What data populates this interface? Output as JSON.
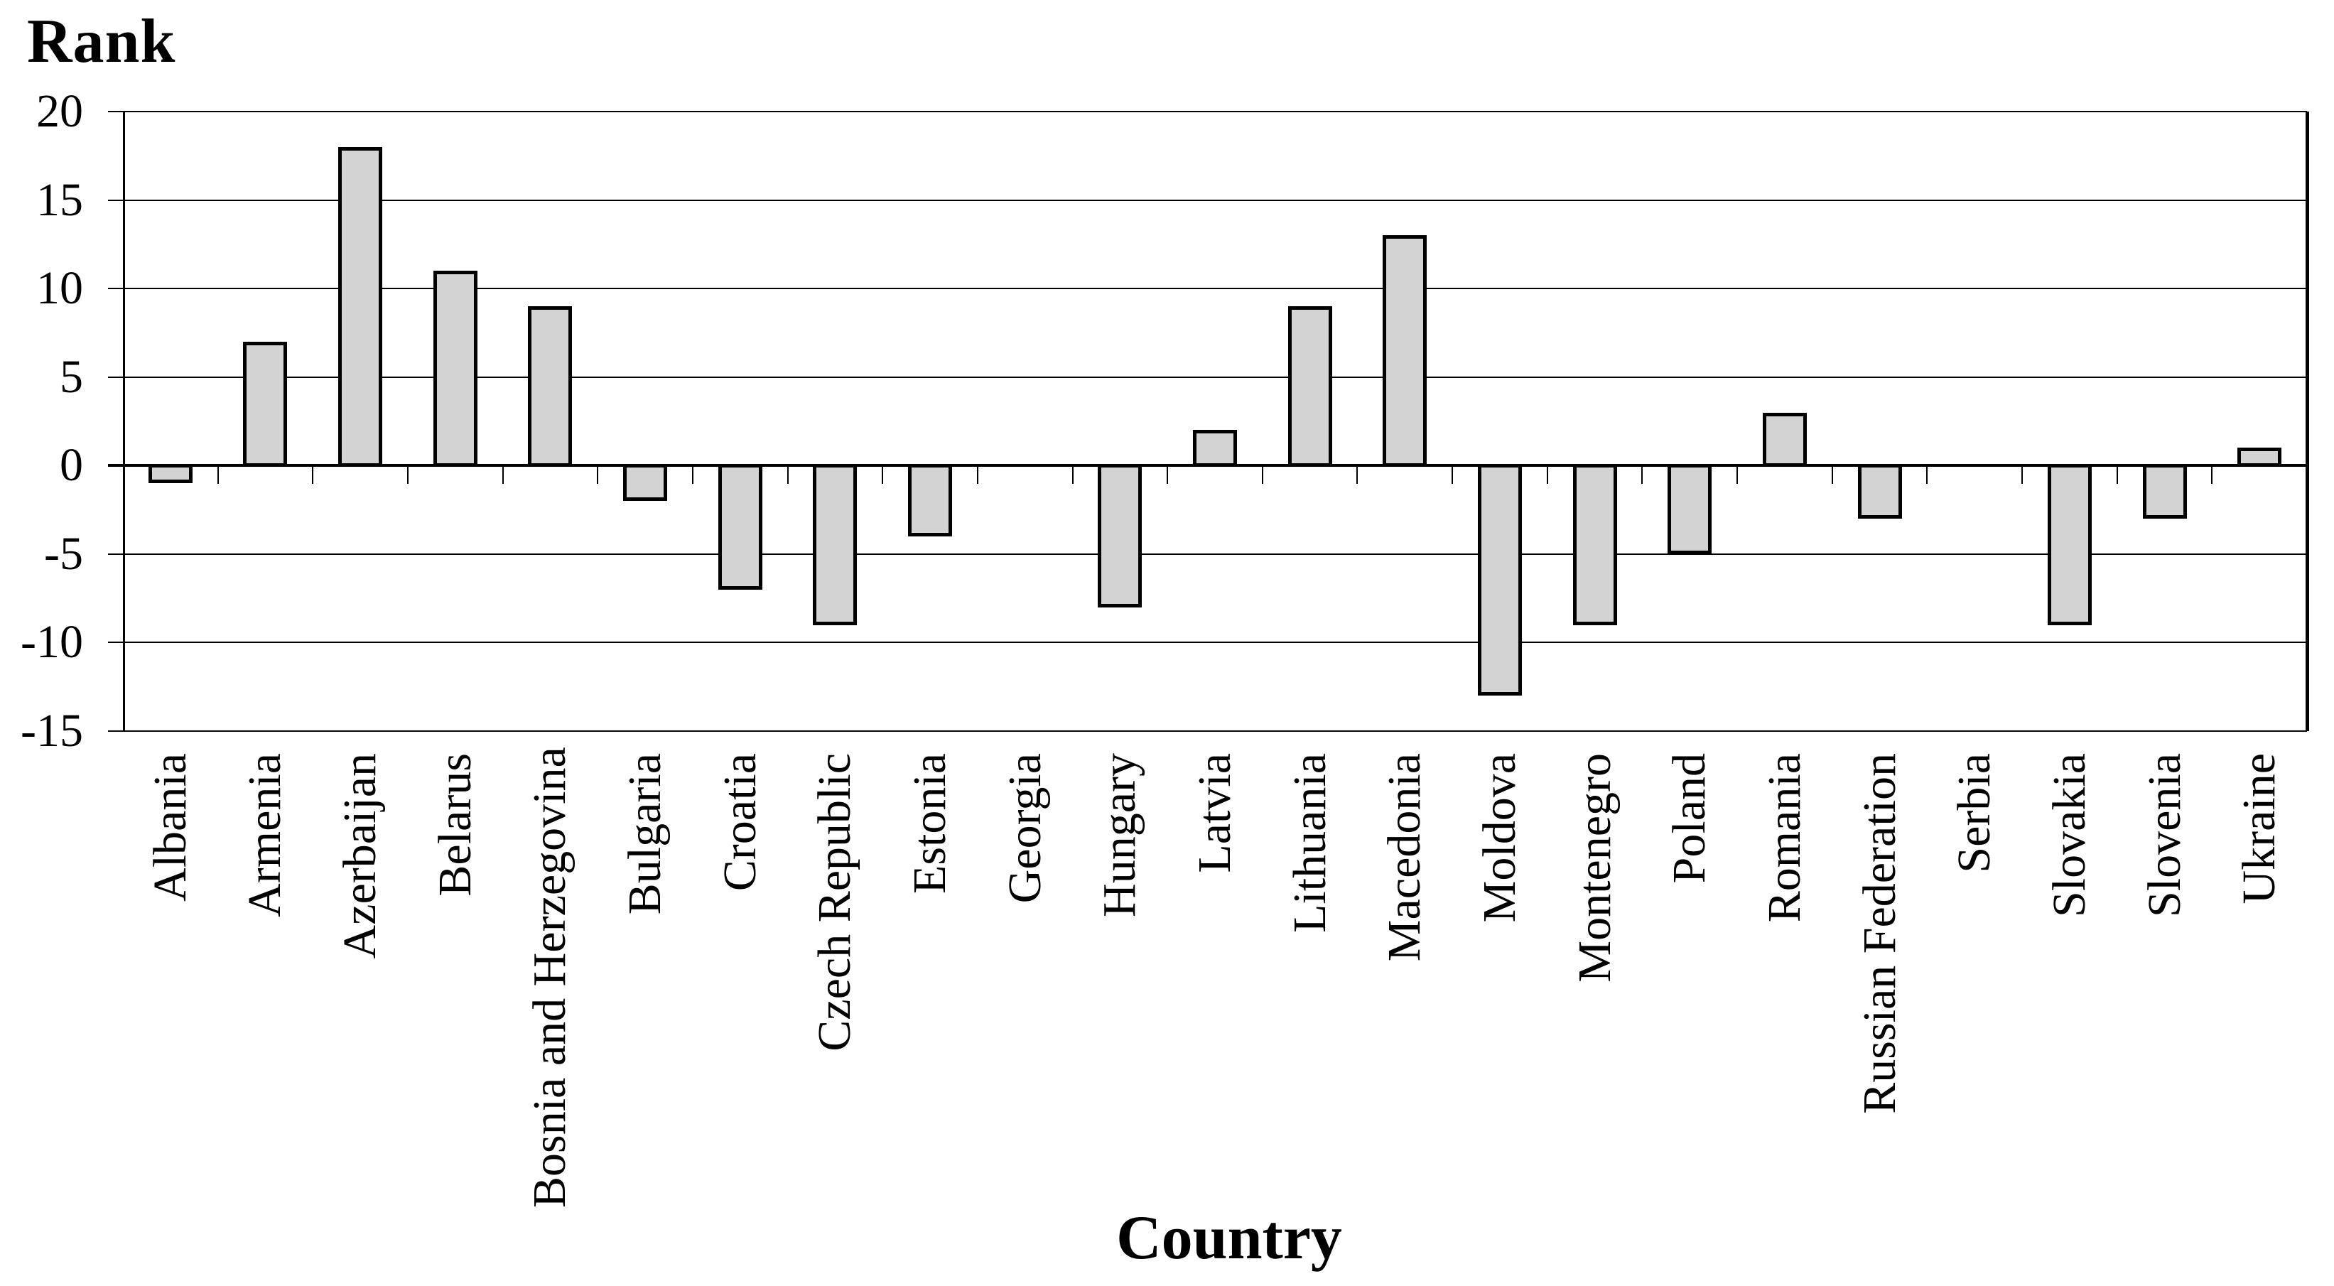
{
  "chart_data": {
    "type": "bar",
    "title": "Rank",
    "xlabel": "Country",
    "ylabel": "Rank",
    "ylim": [
      -15,
      20
    ],
    "ytick_interval": 5,
    "yticks": [
      20,
      15,
      10,
      5,
      0,
      -5,
      -10,
      -15
    ],
    "grid": true,
    "legend": false,
    "bar_fill_color": "#d3d3d3",
    "bar_border_color": "#000000",
    "axis_color": "#000000",
    "categories": [
      "Albania",
      "Armenia",
      "Azerbaijan",
      "Belarus",
      "Bosnia and Herzegovina",
      "Bulgaria",
      "Croatia",
      "Czech Republic",
      "Estonia",
      "Georgia",
      "Hungary",
      "Latvia",
      "Lithuania",
      "Macedonia",
      "Moldova",
      "Montenegro",
      "Poland",
      "Romania",
      "Russian Federation",
      "Serbia",
      "Slovakia",
      "Slovenia",
      "Ukraine"
    ],
    "values": [
      -1,
      7,
      18,
      11,
      9,
      -2,
      -7,
      -9,
      -4,
      0,
      -8,
      2,
      9,
      13,
      -13,
      -9,
      -5,
      3,
      -3,
      0,
      -9,
      -3,
      1
    ]
  }
}
